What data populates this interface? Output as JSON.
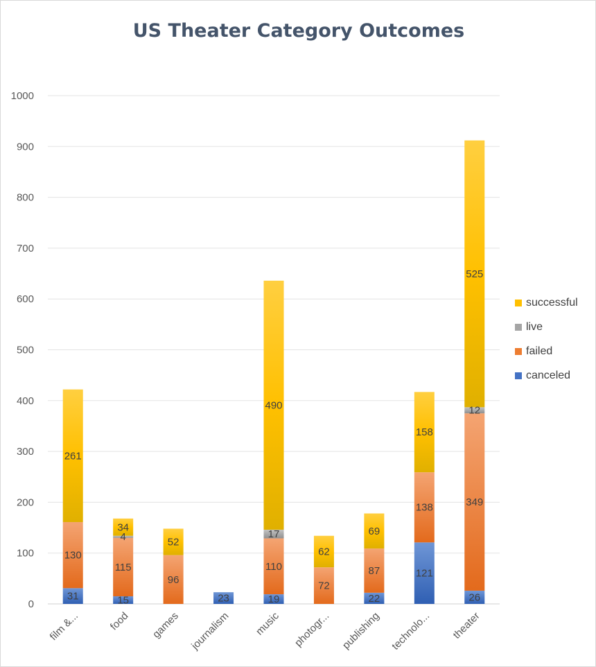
{
  "chart_data": {
    "type": "bar",
    "stacked": true,
    "title": "US Theater Category Outcomes",
    "categories": [
      "film &...",
      "food",
      "games",
      "journalism",
      "music",
      "photogr...",
      "publishing",
      "technolo...",
      "theater"
    ],
    "series": [
      {
        "name": "canceled",
        "color": "#4472c4",
        "values": [
          31,
          15,
          0,
          23,
          19,
          0,
          22,
          121,
          26
        ]
      },
      {
        "name": "failed",
        "color": "#ed7d31",
        "values": [
          130,
          115,
          96,
          0,
          110,
          72,
          87,
          138,
          349
        ]
      },
      {
        "name": "live",
        "color": "#a5a5a5",
        "values": [
          0,
          4,
          0,
          0,
          17,
          0,
          0,
          0,
          12
        ]
      },
      {
        "name": "successful",
        "color": "#ffc000",
        "values": [
          261,
          34,
          52,
          0,
          490,
          62,
          69,
          158,
          525
        ]
      }
    ],
    "ylim": [
      0,
      1000
    ],
    "yticks": [
      "0",
      "100",
      "200",
      "300",
      "400",
      "500",
      "600",
      "700",
      "800",
      "900",
      "1000"
    ],
    "grid": true,
    "legend_position": "right"
  }
}
